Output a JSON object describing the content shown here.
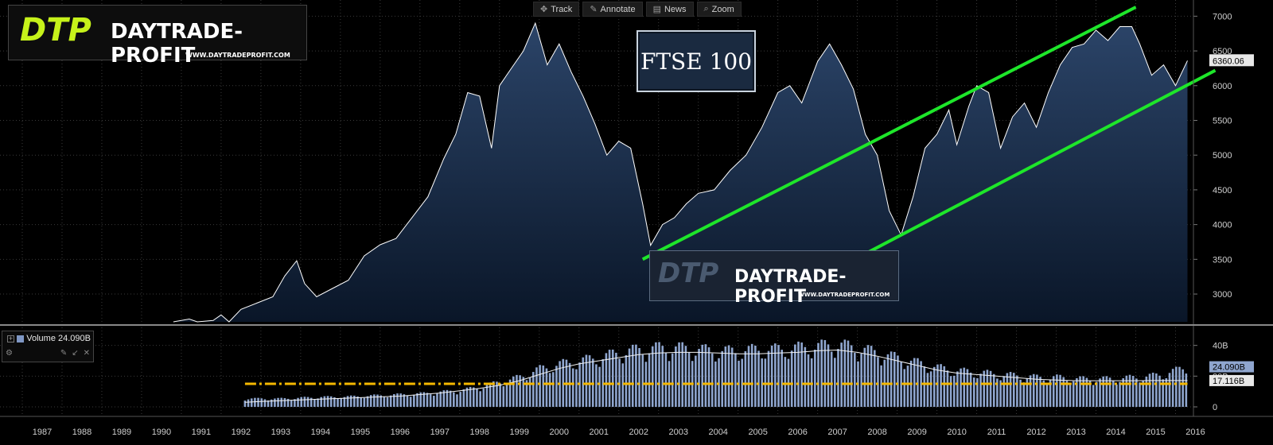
{
  "toolbar": {
    "items": [
      {
        "label": "Track",
        "icon": "crosshair-icon"
      },
      {
        "label": "Annotate",
        "icon": "pencil-icon"
      },
      {
        "label": "News",
        "icon": "news-icon"
      },
      {
        "label": "Zoom",
        "icon": "magnifier-icon"
      }
    ]
  },
  "watermark": {
    "mark": "DTP",
    "text": "DAYTRADE-PROFIT",
    "url": "WWW.DAYTRADEPROFIT.COM"
  },
  "index_label": "FTSE 100",
  "volume_legend": {
    "label": "Volume",
    "value": "24.090B",
    "icons": [
      "gear-icon",
      "pin-icon",
      "collapse-icon",
      "close-icon"
    ]
  },
  "colors": {
    "background": "#000000",
    "price_line": "#ffffff",
    "area_fill_top": "#2b4468",
    "area_fill_bottom": "#0a1628",
    "channel_lines": "#1ee62a",
    "volume_bars": "#8fa6cf",
    "volume_ma": "#f2f2f2",
    "threshold_line": "#f5b800",
    "logo_mark": "#c6f21a"
  },
  "chart_data": [
    {
      "type": "area",
      "series_name": "FTSE 100",
      "last_value": 6360.06,
      "ylim": [
        2600,
        7050
      ],
      "y_ticks": [
        3000,
        3500,
        4000,
        4500,
        5000,
        5500,
        6000,
        6500,
        7000
      ],
      "x_years": [
        "1987",
        "1988",
        "1989",
        "1990",
        "1991",
        "1992",
        "1993",
        "1994",
        "1995",
        "1996",
        "1997",
        "1998",
        "1999",
        "2000",
        "2001",
        "2002",
        "2003",
        "2004",
        "2005",
        "2006",
        "2007",
        "2008",
        "2009",
        "2010",
        "2011",
        "2012",
        "2013",
        "2014",
        "2015",
        "2016"
      ],
      "x": [
        1990.8,
        1991.2,
        1991.4,
        1991.8,
        1992.0,
        1992.2,
        1992.5,
        1992.9,
        1993.3,
        1993.6,
        1993.9,
        1994.1,
        1994.4,
        1994.8,
        1995.2,
        1995.6,
        1996.0,
        1996.4,
        1996.8,
        1997.2,
        1997.6,
        1997.9,
        1998.2,
        1998.5,
        1998.8,
        1999.0,
        1999.3,
        1999.6,
        1999.9,
        2000.2,
        2000.5,
        2000.8,
        2001.1,
        2001.4,
        2001.7,
        2002.0,
        2002.3,
        2002.6,
        2002.8,
        2003.1,
        2003.4,
        2003.7,
        2004.0,
        2004.4,
        2004.8,
        2005.2,
        2005.6,
        2006.0,
        2006.3,
        2006.6,
        2007.0,
        2007.3,
        2007.6,
        2007.9,
        2008.2,
        2008.5,
        2008.8,
        2009.1,
        2009.4,
        2009.7,
        2010.0,
        2010.3,
        2010.5,
        2010.8,
        2011.0,
        2011.3,
        2011.6,
        2011.9,
        2012.2,
        2012.5,
        2012.8,
        2013.1,
        2013.4,
        2013.7,
        2014.0,
        2014.3,
        2014.6,
        2014.9,
        2015.1,
        2015.4,
        2015.7,
        2016.0,
        2016.3
      ],
      "y": [
        2520,
        2640,
        2560,
        2620,
        2700,
        2470,
        2780,
        2870,
        2960,
        3260,
        3480,
        3150,
        2960,
        3080,
        3200,
        3550,
        3710,
        3800,
        4100,
        4400,
        4950,
        5300,
        5900,
        5850,
        5100,
        6000,
        6250,
        6500,
        6900,
        6300,
        6600,
        6200,
        5850,
        5450,
        5000,
        5200,
        5100,
        4300,
        3700,
        4000,
        4100,
        4300,
        4450,
        4500,
        4780,
        5000,
        5400,
        5900,
        6000,
        5750,
        6350,
        6600,
        6300,
        5950,
        5300,
        5000,
        4200,
        3850,
        4400,
        5100,
        5300,
        5650,
        5150,
        5700,
        6000,
        5900,
        5100,
        5550,
        5750,
        5400,
        5900,
        6300,
        6550,
        6600,
        6800,
        6650,
        6850,
        6850,
        6600,
        6150,
        6300,
        6000,
        6360
      ]
    },
    {
      "type": "bar",
      "series_name": "Volume",
      "last_value": "24.090B",
      "ma_value": "17.116B",
      "ylim": [
        0,
        45
      ],
      "y_ticks": [
        0,
        20,
        40
      ],
      "y_tick_labels": [
        "0",
        "20B",
        "40B"
      ],
      "threshold": 15,
      "x": [
        1992.6,
        1993.0,
        1993.5,
        1994.0,
        1994.5,
        1995.0,
        1995.5,
        1996.0,
        1996.5,
        1997.0,
        1997.5,
        1998.0,
        1998.5,
        1999.0,
        1999.5,
        2000.0,
        2000.5,
        2001.0,
        2001.5,
        2002.0,
        2002.5,
        2003.0,
        2003.5,
        2004.0,
        2004.5,
        2005.0,
        2005.5,
        2006.0,
        2006.5,
        2007.0,
        2007.5,
        2008.0,
        2008.5,
        2009.0,
        2009.5,
        2010.0,
        2010.5,
        2011.0,
        2011.5,
        2012.0,
        2012.5,
        2013.0,
        2013.5,
        2014.0,
        2014.5,
        2015.0,
        2015.5,
        2016.0,
        2016.3
      ],
      "values": [
        5,
        5,
        5,
        5.5,
        6,
        6,
        6.5,
        7,
        7.5,
        8,
        9,
        10,
        12,
        15,
        18,
        23,
        26,
        28,
        30,
        33,
        35,
        36,
        36,
        35,
        34,
        34,
        35,
        35,
        36,
        37,
        38,
        36,
        33,
        30,
        27,
        24,
        22,
        21,
        20,
        19,
        18,
        18,
        17,
        17,
        17,
        18,
        19,
        22,
        24.09
      ],
      "ma": [
        3,
        3.5,
        4,
        4.5,
        5,
        5.5,
        6,
        6.5,
        7,
        8,
        9,
        10.5,
        12,
        14,
        17,
        21,
        25,
        28,
        30,
        32,
        34,
        35,
        35.5,
        35.5,
        35,
        34.5,
        34.5,
        35,
        35.5,
        36.5,
        37,
        35.5,
        33,
        30,
        27,
        24,
        22,
        21,
        20,
        19,
        18,
        17.5,
        17,
        17,
        17,
        17,
        17.1,
        17.12,
        17.12
      ]
    }
  ]
}
